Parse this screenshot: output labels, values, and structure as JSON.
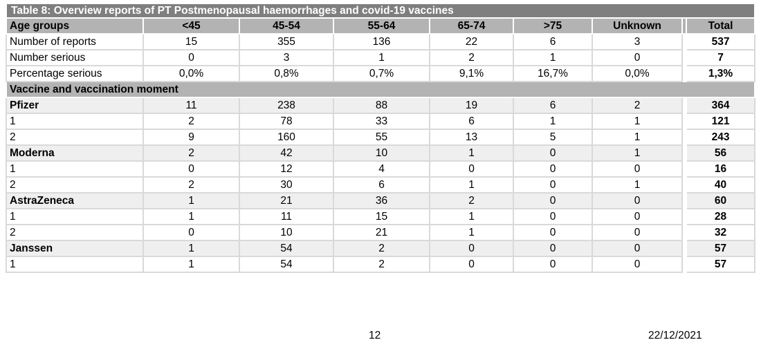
{
  "table": {
    "title": "Table 8: Overview reports of PT Postmenopausal haemorrhages and covid-19 vaccines",
    "columns": [
      "Age groups",
      "<45",
      "45-54",
      "55-64",
      "65-74",
      ">75",
      "Unknown",
      "Total"
    ],
    "rows": [
      {
        "type": "summary",
        "label": "Number of reports",
        "cells": [
          "15",
          "355",
          "136",
          "22",
          "6",
          "3"
        ],
        "total": "537"
      },
      {
        "type": "summary",
        "label": "Number serious",
        "cells": [
          "0",
          "3",
          "1",
          "2",
          "1",
          "0"
        ],
        "total": "7"
      },
      {
        "type": "summary",
        "label": "Percentage serious",
        "cells": [
          "0,0%",
          "0,8%",
          "0,7%",
          "9,1%",
          "16,7%",
          "0,0%"
        ],
        "total": "1,3%"
      },
      {
        "type": "section",
        "label": "Vaccine and vaccination moment"
      },
      {
        "type": "vaccine",
        "label": "Pfizer",
        "cells": [
          "11",
          "238",
          "88",
          "19",
          "6",
          "2"
        ],
        "total": "364"
      },
      {
        "type": "dose",
        "label": "1",
        "cells": [
          "2",
          "78",
          "33",
          "6",
          "1",
          "1"
        ],
        "total": "121"
      },
      {
        "type": "dose",
        "label": "2",
        "cells": [
          "9",
          "160",
          "55",
          "13",
          "5",
          "1"
        ],
        "total": "243"
      },
      {
        "type": "vaccine",
        "label": "Moderna",
        "cells": [
          "2",
          "42",
          "10",
          "1",
          "0",
          "1"
        ],
        "total": "56"
      },
      {
        "type": "dose",
        "label": "1",
        "cells": [
          "0",
          "12",
          "4",
          "0",
          "0",
          "0"
        ],
        "total": "16"
      },
      {
        "type": "dose",
        "label": "2",
        "cells": [
          "2",
          "30",
          "6",
          "1",
          "0",
          "1"
        ],
        "total": "40"
      },
      {
        "type": "vaccine",
        "label": "AstraZeneca",
        "cells": [
          "1",
          "21",
          "36",
          "2",
          "0",
          "0"
        ],
        "total": "60"
      },
      {
        "type": "dose",
        "label": "1",
        "cells": [
          "1",
          "11",
          "15",
          "1",
          "0",
          "0"
        ],
        "total": "28"
      },
      {
        "type": "dose",
        "label": "2",
        "cells": [
          "0",
          "10",
          "21",
          "1",
          "0",
          "0"
        ],
        "total": "32"
      },
      {
        "type": "vaccine",
        "label": "Janssen",
        "cells": [
          "1",
          "54",
          "2",
          "0",
          "0",
          "0"
        ],
        "total": "57"
      },
      {
        "type": "dose",
        "label": "1",
        "cells": [
          "1",
          "54",
          "2",
          "0",
          "0",
          "0"
        ],
        "total": "57"
      }
    ]
  },
  "footer": {
    "page_number": "12",
    "date": "22/12/2021"
  },
  "colors": {
    "title_bar_bg": "#7f7f7f",
    "title_bar_text": "#ffffff",
    "header_bg": "#b3b3b3",
    "band_row_bg": "#efefef",
    "gridline": "#d9d9d9"
  }
}
